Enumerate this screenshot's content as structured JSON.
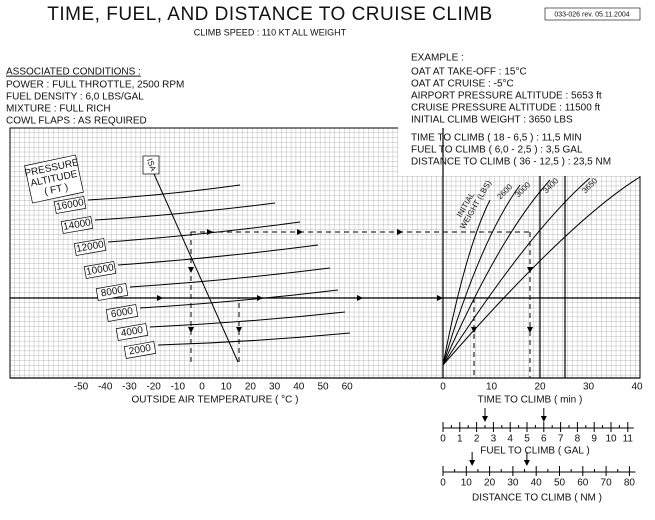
{
  "header": {
    "title": "TIME, FUEL, AND DISTANCE TO CRUISE CLIMB",
    "subtitle": "CLIMB SPEED : 110 KT   ALL WEIGHT",
    "revision": "033-026 rev. 05.11.2004"
  },
  "conditions": {
    "heading": "ASSOCIATED CONDITIONS :",
    "lines": [
      "POWER : FULL THROTTLE, 2500 RPM",
      "FUEL DENSITY : 6,0 LBS/GAL",
      "MIXTURE : FULL RICH",
      "COWL FLAPS : AS REQUIRED"
    ]
  },
  "example": {
    "heading": "EXAMPLE :",
    "lines": [
      "OAT AT TAKE-OFF : 15°C",
      "OAT AT CRUISE : -5°C",
      "AIRPORT PRESSURE ALTITUDE : 5653 ft",
      "CRUISE PRESSURE ALTITUDE : 11500 ft",
      "INITIAL CLIMB WEIGHT : 3650 LBS"
    ],
    "results": [
      "TIME TO CLIMB ( 18 - 6,5 ) : 11,5 MIN",
      "FUEL TO CLIMB ( 6,0 - 2,5 ) : 3,5 GAL",
      "DISTANCE TO CLIMB ( 36 - 12,5 ) : 23,5 NM"
    ]
  },
  "chart": {
    "pressure_label": [
      "PRESSURE",
      "ALTITUDE",
      "( FT )"
    ],
    "altitudes": [
      "16000",
      "14000",
      "12000",
      "10000",
      "8000",
      "6000",
      "4000",
      "2000"
    ],
    "isa": "ISA",
    "weight_label": [
      "INITIAL",
      "WEIGHT (LBS)"
    ],
    "weights": [
      "2600",
      "3000",
      "3400",
      "3650"
    ]
  },
  "oat_axis": {
    "title": "OUTSIDE AIR TEMPERATURE ( °C )",
    "ticks": [
      "-50",
      "-40",
      "-30",
      "-20",
      "-10",
      "0",
      "10",
      "20",
      "30",
      "40",
      "50",
      "60"
    ]
  },
  "time_axis": {
    "title": "TIME TO CLIMB ( min )",
    "ticks": [
      "0",
      "10",
      "20",
      "30",
      "40"
    ]
  },
  "fuel_scale": {
    "title": "FUEL TO CLIMB ( GAL )",
    "ticks": [
      "0",
      "1",
      "2",
      "3",
      "4",
      "5",
      "6",
      "7",
      "8",
      "9",
      "10",
      "11"
    ]
  },
  "distance_scale": {
    "title": "DISTANCE TO CLIMB ( NM )",
    "ticks": [
      "0",
      "10",
      "20",
      "30",
      "40",
      "50",
      "60",
      "70",
      "80"
    ]
  }
}
